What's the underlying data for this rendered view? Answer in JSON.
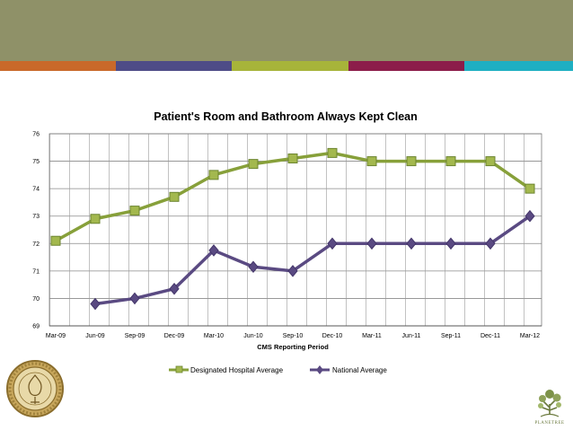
{
  "theme": {
    "header_color": "#8f9168",
    "stripe_colors": [
      "#c9692a",
      "#4e4c87",
      "#a7b43a",
      "#8c1d4a",
      "#1eafc2"
    ],
    "hospital_color": "#87a03a",
    "hospital_marker_color": "#a3b84e",
    "national_color": "#5a4a82"
  },
  "chart_data": {
    "type": "line",
    "title": "Patient's Room and Bathroom Always Kept Clean",
    "xlabel": "CMS Reporting Period",
    "ylabel": "",
    "ylim": [
      69,
      76
    ],
    "yticks": [
      69,
      70,
      71,
      72,
      73,
      74,
      75,
      76
    ],
    "categories": [
      "Mar-09",
      "Jun-09",
      "Sep-09",
      "Dec-09",
      "Mar-10",
      "Jun-10",
      "Sep-10",
      "Dec-10",
      "Mar-11",
      "Jun-11",
      "Sep-11",
      "Dec-11",
      "Mar-12"
    ],
    "grid": true,
    "legend_position": "bottom",
    "series": [
      {
        "name": "Designated Hospital Average",
        "marker": "square",
        "values": [
          72.1,
          72.9,
          73.2,
          73.7,
          74.5,
          74.9,
          75.1,
          75.3,
          75,
          75,
          75,
          75,
          74
        ]
      },
      {
        "name": "National Average",
        "marker": "diamond",
        "values": [
          null,
          69.8,
          70,
          70.35,
          71.75,
          71.15,
          71,
          72,
          72,
          72,
          72,
          72,
          73
        ]
      }
    ]
  },
  "logos": {
    "left": "designation-seal",
    "right_name": "tree-logo",
    "right_text": "PLANETREE"
  }
}
